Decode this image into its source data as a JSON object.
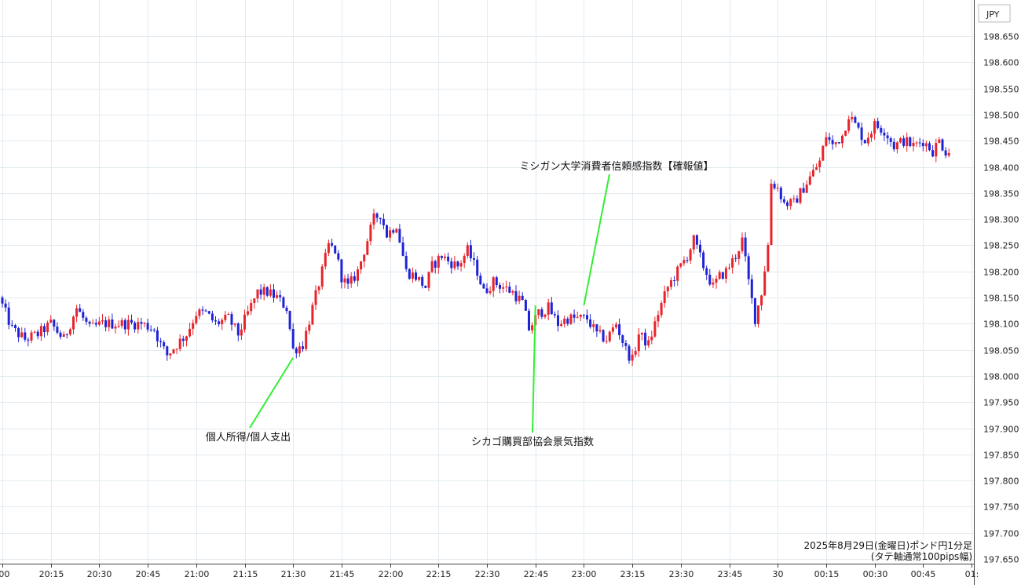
{
  "chart_data": {
    "type": "candlestick",
    "title": "2025年8月29日(金曜日)ポンド円1分足",
    "subtitle": "(タテ軸通常100pips幅)",
    "currency_label": "JPY",
    "x_tick_labels": [
      ":00",
      "20:15",
      "20:30",
      "20:45",
      "21:00",
      "21:15",
      "21:30",
      "21:45",
      "22:00",
      "22:15",
      "22:30",
      "22:45",
      "23:00",
      "23:15",
      "23:30",
      "23:45",
      "30",
      "00:15",
      "00:30",
      "00:45",
      "01:"
    ],
    "x_tick_times": [
      0,
      15,
      30,
      45,
      60,
      75,
      90,
      105,
      120,
      135,
      150,
      165,
      180,
      195,
      210,
      225,
      240,
      255,
      270,
      285,
      300
    ],
    "x_start": "20:00",
    "ylim": [
      197.65,
      198.68
    ],
    "y_ticks": [
      197.65,
      197.7,
      197.75,
      197.8,
      197.85,
      197.9,
      197.95,
      198.0,
      198.05,
      198.1,
      198.15,
      198.2,
      198.25,
      198.3,
      198.35,
      198.4,
      198.45,
      198.5,
      198.55,
      198.6,
      198.65
    ],
    "y_tick_labels": [
      "197.650",
      "197.700",
      "197.750",
      "197.800",
      "197.850",
      "197.900",
      "197.950",
      "198.000",
      "198.050",
      "198.100",
      "198.150",
      "198.200",
      "198.250",
      "198.300",
      "198.350",
      "198.400",
      "198.450",
      "198.500",
      "198.550",
      "198.600",
      "198.650"
    ],
    "colors": {
      "up": "#e8232a",
      "down": "#1f23d6",
      "grid": "#e3ebf0",
      "annotation_line": "#33ee33"
    },
    "annotations": [
      {
        "label": "個人所得/個人支出",
        "time": 90,
        "price": 198.035
      },
      {
        "label": "シカゴ購買部協会景気指数",
        "time": 165,
        "price": 198.135
      },
      {
        "label": "ミシガン大学消費者信頼感指数【確報値】",
        "time": 180,
        "price": 198.135
      }
    ],
    "anchors": [
      [
        0,
        198.15
      ],
      [
        4,
        198.09
      ],
      [
        8,
        198.07
      ],
      [
        12,
        198.08
      ],
      [
        16,
        198.1
      ],
      [
        20,
        198.07
      ],
      [
        24,
        198.13
      ],
      [
        28,
        198.09
      ],
      [
        32,
        198.1
      ],
      [
        36,
        198.1
      ],
      [
        40,
        198.1
      ],
      [
        44,
        198.1
      ],
      [
        48,
        198.09
      ],
      [
        50,
        198.06
      ],
      [
        52,
        198.04
      ],
      [
        55,
        198.06
      ],
      [
        58,
        198.08
      ],
      [
        61,
        198.12
      ],
      [
        64,
        198.12
      ],
      [
        67,
        198.1
      ],
      [
        71,
        198.11
      ],
      [
        74,
        198.08
      ],
      [
        77,
        198.12
      ],
      [
        80,
        198.16
      ],
      [
        83,
        198.16
      ],
      [
        86,
        198.15
      ],
      [
        89,
        198.13
      ],
      [
        91,
        198.05
      ],
      [
        94,
        198.06
      ],
      [
        97,
        198.13
      ],
      [
        100,
        198.2
      ],
      [
        102,
        198.25
      ],
      [
        104,
        198.24
      ],
      [
        106,
        198.19
      ],
      [
        108,
        198.17
      ],
      [
        111,
        198.2
      ],
      [
        113,
        198.24
      ],
      [
        116,
        198.3
      ],
      [
        118,
        198.31
      ],
      [
        120,
        198.27
      ],
      [
        123,
        198.29
      ],
      [
        126,
        198.2
      ],
      [
        129,
        198.19
      ],
      [
        132,
        198.17
      ],
      [
        134,
        198.21
      ],
      [
        137,
        198.23
      ],
      [
        139,
        198.22
      ],
      [
        142,
        198.21
      ],
      [
        145,
        198.24
      ],
      [
        148,
        198.2
      ],
      [
        150,
        198.16
      ],
      [
        153,
        198.18
      ],
      [
        156,
        198.17
      ],
      [
        159,
        198.16
      ],
      [
        162,
        198.14
      ],
      [
        164,
        198.09
      ],
      [
        167,
        198.12
      ],
      [
        170,
        198.13
      ],
      [
        173,
        198.1
      ],
      [
        176,
        198.11
      ],
      [
        179,
        198.11
      ],
      [
        182,
        198.11
      ],
      [
        185,
        198.08
      ],
      [
        188,
        198.07
      ],
      [
        191,
        198.1
      ],
      [
        194,
        198.05
      ],
      [
        196,
        198.03
      ],
      [
        198,
        198.08
      ],
      [
        201,
        198.06
      ],
      [
        204,
        198.12
      ],
      [
        207,
        198.17
      ],
      [
        210,
        198.2
      ],
      [
        213,
        198.23
      ],
      [
        215,
        198.26
      ],
      [
        218,
        198.21
      ],
      [
        221,
        198.17
      ],
      [
        223,
        198.19
      ],
      [
        225,
        198.2
      ],
      [
        228,
        198.23
      ],
      [
        230,
        198.26
      ],
      [
        232,
        198.18
      ],
      [
        234,
        198.11
      ],
      [
        236,
        198.16
      ],
      [
        238,
        198.25
      ],
      [
        239,
        198.37
      ],
      [
        241,
        198.36
      ],
      [
        243,
        198.33
      ],
      [
        246,
        198.33
      ],
      [
        249,
        198.36
      ],
      [
        252,
        198.39
      ],
      [
        254,
        198.41
      ],
      [
        256,
        198.46
      ],
      [
        258,
        198.44
      ],
      [
        261,
        198.46
      ],
      [
        263,
        198.5
      ],
      [
        265,
        198.48
      ],
      [
        268,
        198.45
      ],
      [
        271,
        198.48
      ],
      [
        274,
        198.47
      ],
      [
        277,
        198.44
      ],
      [
        280,
        198.45
      ],
      [
        283,
        198.44
      ],
      [
        286,
        198.45
      ],
      [
        289,
        198.43
      ],
      [
        291,
        198.45
      ],
      [
        293,
        198.43
      ]
    ]
  }
}
